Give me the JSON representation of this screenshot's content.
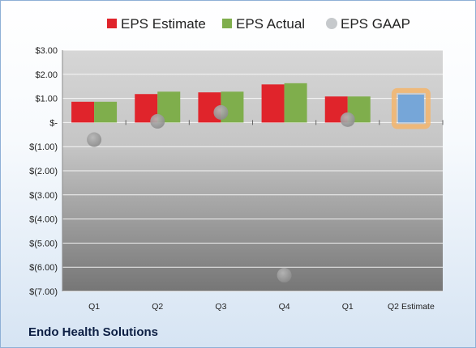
{
  "company": "Endo Health Solutions",
  "chart_data": {
    "type": "bar",
    "categories": [
      "Q1",
      "Q2",
      "Q3",
      "Q4",
      "Q1",
      "Q2 Estimate"
    ],
    "series": [
      {
        "name": "EPS Estimate",
        "color": "#e0242b",
        "values": [
          0.86,
          1.18,
          1.25,
          1.58,
          1.08,
          null
        ]
      },
      {
        "name": "EPS Actual",
        "color": "#7fae4c",
        "values": [
          0.86,
          1.28,
          1.28,
          1.63,
          1.08,
          null
        ]
      },
      {
        "name": "EPS GAAP",
        "color": "#b0b0b0",
        "type": "scatter",
        "values": [
          -0.71,
          0.05,
          0.42,
          -6.33,
          0.12,
          null
        ]
      }
    ],
    "estimate_bar": {
      "category": "Q2 Estimate",
      "value": 1.16,
      "color": "#76a6d8",
      "highlight": "#f3b56c"
    },
    "ylim": [
      -7,
      3
    ],
    "y_ticks": [
      3,
      2,
      1,
      0,
      -1,
      -2,
      -3,
      -4,
      -5,
      -6,
      -7
    ],
    "y_tick_labels": [
      "$3.00",
      "$2.00",
      "$1.00",
      "$-",
      "$(1.00)",
      "$(2.00)",
      "$(3.00)",
      "$(4.00)",
      "$(5.00)",
      "$(6.00)",
      "$(7.00)"
    ],
    "legend_position": "top",
    "grid": true
  }
}
